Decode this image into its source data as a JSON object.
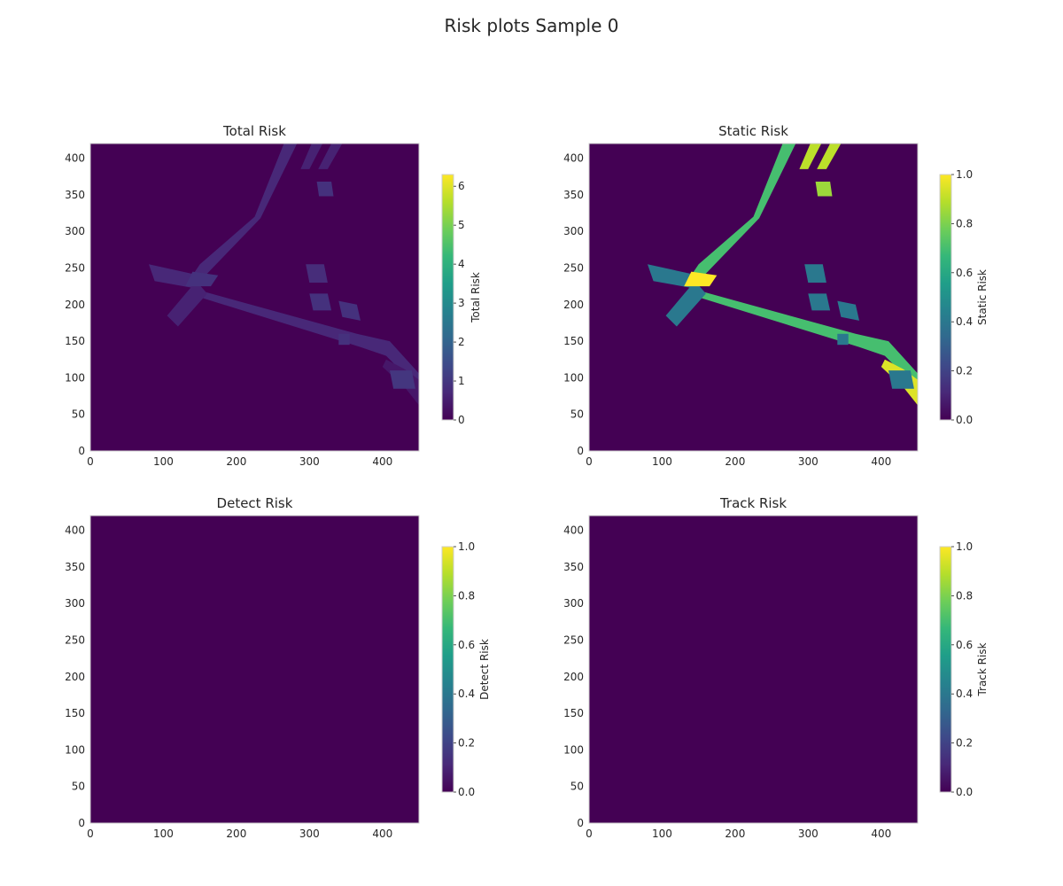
{
  "figure": {
    "title": "Risk plots Sample 0"
  },
  "colors": {
    "viridis": [
      "#440154",
      "#482878",
      "#3e4989",
      "#31688e",
      "#26828e",
      "#1f9e89",
      "#35b779",
      "#6ece58",
      "#b5de2b",
      "#fde725"
    ],
    "axis_frame": "#cccccc",
    "text": "#262626"
  },
  "chart_data": [
    {
      "type": "heatmap",
      "title": "Total Risk",
      "xlabel": "",
      "ylabel": "",
      "xlim": [
        0,
        450
      ],
      "ylim": [
        0,
        420
      ],
      "xticks": [
        0,
        100,
        200,
        300,
        400
      ],
      "yticks": [
        0,
        50,
        100,
        150,
        200,
        250,
        300,
        350,
        400
      ],
      "grid": false,
      "colorbar": {
        "label": "Total Risk",
        "range": [
          0,
          6.3
        ],
        "ticks": [
          0,
          1,
          2,
          3,
          4,
          5,
          6
        ]
      },
      "background_value": 0,
      "regions": [
        {
          "polygon": [
            [
              265,
              420
            ],
            [
              283,
              420
            ],
            [
              233,
              318
            ],
            [
              153,
              235
            ],
            [
              133,
              230
            ],
            [
              150,
              255
            ],
            [
              225,
              320
            ]
          ],
          "value": 0.7
        },
        {
          "polygon": [
            [
              303,
              420
            ],
            [
              318,
              420
            ],
            [
              300,
              385
            ],
            [
              288,
              385
            ]
          ],
          "value": 0.6
        },
        {
          "polygon": [
            [
              330,
              420
            ],
            [
              345,
              420
            ],
            [
              325,
              385
            ],
            [
              312,
              385
            ]
          ],
          "value": 0.6
        },
        {
          "polygon": [
            [
              310,
              368
            ],
            [
              330,
              368
            ],
            [
              333,
              348
            ],
            [
              313,
              348
            ]
          ],
          "value": 0.9
        },
        {
          "polygon": [
            [
              80,
              255
            ],
            [
              88,
              232
            ],
            [
              145,
              222
            ],
            [
              140,
              242
            ]
          ],
          "value": 0.7
        },
        {
          "polygon": [
            [
              145,
              242
            ],
            [
              140,
              222
            ],
            [
              365,
              160
            ],
            [
              410,
              150
            ],
            [
              460,
              95
            ],
            [
              460,
              75
            ],
            [
              405,
              130
            ],
            [
              370,
              142
            ],
            [
              150,
              210
            ]
          ],
          "value": 0.7
        },
        {
          "polygon": [
            [
              105,
              185
            ],
            [
              120,
              170
            ],
            [
              160,
              215
            ],
            [
              145,
              232
            ]
          ],
          "value": 0.6
        },
        {
          "polygon": [
            [
              130,
              225
            ],
            [
              165,
              225
            ],
            [
              175,
              240
            ],
            [
              140,
              245
            ]
          ],
          "value": 0.9
        },
        {
          "polygon": [
            [
              405,
              125
            ],
            [
              430,
              112
            ],
            [
              460,
              90
            ],
            [
              452,
              60
            ],
            [
              432,
              85
            ],
            [
              400,
              115
            ]
          ],
          "value": 0.4
        },
        {
          "polygon": [
            [
              300,
              215
            ],
            [
              325,
              215
            ],
            [
              330,
              192
            ],
            [
              305,
              192
            ]
          ],
          "value": 0.9
        },
        {
          "polygon": [
            [
              340,
              205
            ],
            [
              365,
              200
            ],
            [
              370,
              178
            ],
            [
              345,
              183
            ]
          ],
          "value": 0.9
        },
        {
          "polygon": [
            [
              410,
              110
            ],
            [
              440,
              110
            ],
            [
              445,
              85
            ],
            [
              415,
              85
            ]
          ],
          "value": 1.0
        },
        {
          "polygon": [
            [
              295,
              255
            ],
            [
              320,
              255
            ],
            [
              325,
              230
            ],
            [
              300,
              230
            ]
          ],
          "value": 0.8
        },
        {
          "polygon": [
            [
              340,
              160
            ],
            [
              355,
              160
            ],
            [
              355,
              145
            ],
            [
              340,
              145
            ]
          ],
          "value": 0.9
        }
      ]
    },
    {
      "type": "heatmap",
      "title": "Static Risk",
      "xlabel": "",
      "ylabel": "",
      "xlim": [
        0,
        450
      ],
      "ylim": [
        0,
        420
      ],
      "xticks": [
        0,
        100,
        200,
        300,
        400
      ],
      "yticks": [
        0,
        50,
        100,
        150,
        200,
        250,
        300,
        350,
        400
      ],
      "grid": false,
      "colorbar": {
        "label": "Static Risk",
        "range": [
          0,
          1
        ],
        "ticks": [
          0.0,
          0.2,
          0.4,
          0.6,
          0.8,
          1.0
        ]
      },
      "background_value": 0,
      "regions": [
        {
          "polygon": [
            [
              265,
              420
            ],
            [
              283,
              420
            ],
            [
              233,
              318
            ],
            [
              153,
              235
            ],
            [
              133,
              230
            ],
            [
              150,
              255
            ],
            [
              225,
              320
            ]
          ],
          "value": 0.7
        },
        {
          "polygon": [
            [
              303,
              420
            ],
            [
              318,
              420
            ],
            [
              300,
              385
            ],
            [
              288,
              385
            ]
          ],
          "value": 0.9
        },
        {
          "polygon": [
            [
              330,
              420
            ],
            [
              345,
              420
            ],
            [
              325,
              385
            ],
            [
              312,
              385
            ]
          ],
          "value": 0.9
        },
        {
          "polygon": [
            [
              310,
              368
            ],
            [
              330,
              368
            ],
            [
              333,
              348
            ],
            [
              313,
              348
            ]
          ],
          "value": 0.85
        },
        {
          "polygon": [
            [
              80,
              255
            ],
            [
              88,
              232
            ],
            [
              145,
              222
            ],
            [
              140,
              242
            ]
          ],
          "value": 0.4
        },
        {
          "polygon": [
            [
              145,
              242
            ],
            [
              140,
              222
            ],
            [
              365,
              160
            ],
            [
              410,
              150
            ],
            [
              460,
              95
            ],
            [
              460,
              75
            ],
            [
              405,
              130
            ],
            [
              370,
              142
            ],
            [
              150,
              210
            ]
          ],
          "value": 0.7
        },
        {
          "polygon": [
            [
              105,
              185
            ],
            [
              120,
              170
            ],
            [
              160,
              215
            ],
            [
              145,
              232
            ]
          ],
          "value": 0.4
        },
        {
          "polygon": [
            [
              130,
              225
            ],
            [
              165,
              225
            ],
            [
              175,
              240
            ],
            [
              140,
              245
            ]
          ],
          "value": 1.0
        },
        {
          "polygon": [
            [
              405,
              125
            ],
            [
              430,
              112
            ],
            [
              460,
              90
            ],
            [
              452,
              60
            ],
            [
              432,
              85
            ],
            [
              400,
              115
            ]
          ],
          "value": 0.95
        },
        {
          "polygon": [
            [
              300,
              215
            ],
            [
              325,
              215
            ],
            [
              330,
              192
            ],
            [
              305,
              192
            ]
          ],
          "value": 0.4
        },
        {
          "polygon": [
            [
              340,
              205
            ],
            [
              365,
              200
            ],
            [
              370,
              178
            ],
            [
              345,
              183
            ]
          ],
          "value": 0.4
        },
        {
          "polygon": [
            [
              410,
              110
            ],
            [
              440,
              110
            ],
            [
              445,
              85
            ],
            [
              415,
              85
            ]
          ],
          "value": 0.4
        },
        {
          "polygon": [
            [
              295,
              255
            ],
            [
              320,
              255
            ],
            [
              325,
              230
            ],
            [
              300,
              230
            ]
          ],
          "value": 0.4
        },
        {
          "polygon": [
            [
              340,
              160
            ],
            [
              355,
              160
            ],
            [
              355,
              145
            ],
            [
              340,
              145
            ]
          ],
          "value": 0.4
        }
      ]
    },
    {
      "type": "heatmap",
      "title": "Detect Risk",
      "xlabel": "",
      "ylabel": "",
      "xlim": [
        0,
        450
      ],
      "ylim": [
        0,
        420
      ],
      "xticks": [
        0,
        100,
        200,
        300,
        400
      ],
      "yticks": [
        0,
        50,
        100,
        150,
        200,
        250,
        300,
        350,
        400
      ],
      "grid": false,
      "colorbar": {
        "label": "Detect Risk",
        "range": [
          0,
          1
        ],
        "ticks": [
          0.0,
          0.2,
          0.4,
          0.6,
          0.8,
          1.0
        ]
      },
      "background_value": 0,
      "regions": []
    },
    {
      "type": "heatmap",
      "title": "Track Risk",
      "xlabel": "",
      "ylabel": "",
      "xlim": [
        0,
        450
      ],
      "ylim": [
        0,
        420
      ],
      "xticks": [
        0,
        100,
        200,
        300,
        400
      ],
      "yticks": [
        0,
        50,
        100,
        150,
        200,
        250,
        300,
        350,
        400
      ],
      "grid": false,
      "colorbar": {
        "label": "Track Risk",
        "range": [
          0,
          1
        ],
        "ticks": [
          0.0,
          0.2,
          0.4,
          0.6,
          0.8,
          1.0
        ]
      },
      "background_value": 0,
      "regions": []
    }
  ]
}
